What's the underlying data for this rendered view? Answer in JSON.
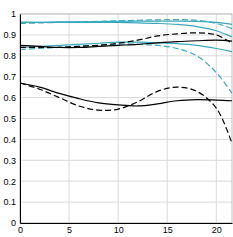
{
  "chart_data": {
    "type": "line",
    "x": [
      0,
      2,
      4,
      6,
      8,
      10,
      12,
      14,
      16,
      18,
      20,
      21.6
    ],
    "xlim": [
      0,
      21.6
    ],
    "xticks": [
      0,
      5,
      10,
      15,
      20
    ],
    "ylim": [
      0,
      1
    ],
    "yticks": [
      0,
      0.1,
      0.2,
      0.3,
      0.4,
      0.5,
      0.6,
      0.7,
      0.8,
      0.9,
      1
    ],
    "grid": true,
    "series": [
      {
        "color": "#3aa8bd",
        "line_style": "solid",
        "values": [
          0.96,
          0.96,
          0.962,
          0.963,
          0.964,
          0.965,
          0.966,
          0.966,
          0.966,
          0.965,
          0.96,
          0.95
        ]
      },
      {
        "color": "#3aa8bd",
        "line_style": "dashed",
        "values": [
          0.955,
          0.957,
          0.96,
          0.962,
          0.965,
          0.967,
          0.97,
          0.972,
          0.973,
          0.97,
          0.955,
          0.93
        ]
      },
      {
        "color": "#3aa8bd",
        "line_style": "solid",
        "values": [
          0.96,
          0.96,
          0.96,
          0.96,
          0.96,
          0.96,
          0.958,
          0.955,
          0.95,
          0.94,
          0.92,
          0.89
        ]
      },
      {
        "color": "#3aa8bd",
        "line_style": "solid",
        "values": [
          0.84,
          0.845,
          0.85,
          0.855,
          0.86,
          0.865,
          0.865,
          0.862,
          0.858,
          0.85,
          0.835,
          0.82
        ]
      },
      {
        "color": "#3aa8bd",
        "line_style": "dashed",
        "values": [
          0.83,
          0.835,
          0.84,
          0.845,
          0.85,
          0.855,
          0.855,
          0.85,
          0.835,
          0.8,
          0.72,
          0.62
        ]
      },
      {
        "color": "#000000",
        "line_style": "solid",
        "values": [
          0.85,
          0.845,
          0.84,
          0.84,
          0.845,
          0.85,
          0.855,
          0.862,
          0.868,
          0.872,
          0.875,
          0.87
        ]
      },
      {
        "color": "#000000",
        "line_style": "dashed",
        "values": [
          0.84,
          0.84,
          0.84,
          0.845,
          0.85,
          0.86,
          0.875,
          0.895,
          0.905,
          0.91,
          0.9,
          0.86
        ]
      },
      {
        "color": "#000000",
        "line_style": "solid",
        "values": [
          0.67,
          0.65,
          0.62,
          0.595,
          0.575,
          0.565,
          0.56,
          0.57,
          0.585,
          0.59,
          0.588,
          0.585
        ]
      },
      {
        "color": "#000000",
        "line_style": "dashed",
        "values": [
          0.67,
          0.64,
          0.6,
          0.56,
          0.54,
          0.545,
          0.58,
          0.63,
          0.65,
          0.63,
          0.55,
          0.38
        ]
      }
    ]
  }
}
